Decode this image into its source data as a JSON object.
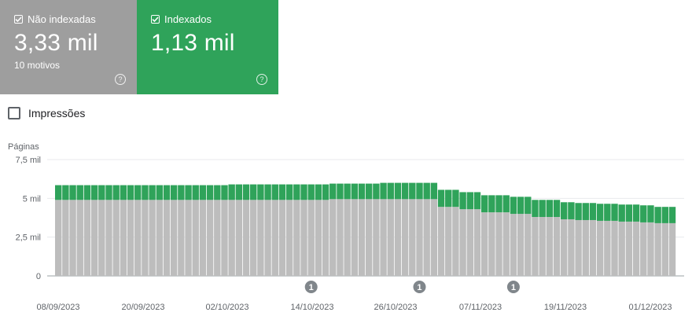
{
  "cards": {
    "not_indexed": {
      "label": "Não indexadas",
      "value": "3,33 mil",
      "sub": "10 motivos",
      "color": "#9e9e9e"
    },
    "indexed": {
      "label": "Indexados",
      "value": "1,13 mil",
      "color": "#2fa35a"
    }
  },
  "impressions": {
    "label": "Impressões"
  },
  "chart_data": {
    "type": "bar",
    "stacked": true,
    "y_title": "Páginas",
    "y_ticks": [
      "7,5 mil",
      "5 mil",
      "2,5 mil",
      "0"
    ],
    "ylim": [
      0,
      7500
    ],
    "x_ticks": [
      "08/09/2023",
      "20/09/2023",
      "02/10/2023",
      "14/10/2023",
      "26/10/2023",
      "07/11/2023",
      "19/11/2023",
      "01/12/2023"
    ],
    "grid": true,
    "series": [
      {
        "name": "Não indexadas",
        "color": "#bdbdbd",
        "values": [
          4900,
          4900,
          4900,
          4900,
          4900,
          4900,
          4900,
          4900,
          4900,
          4900,
          4900,
          4900,
          4900,
          4900,
          4900,
          4900,
          4900,
          4900,
          4900,
          4900,
          4900,
          4900,
          4900,
          4900,
          4900,
          4900,
          4900,
          4900,
          4900,
          4900,
          4900,
          4900,
          4900,
          4900,
          4900,
          4900,
          4900,
          4900,
          4950,
          4950,
          4950,
          4950,
          4950,
          4950,
          4950,
          4950,
          4950,
          4950,
          4950,
          4950,
          4950,
          4950,
          4950,
          4450,
          4450,
          4450,
          4300,
          4300,
          4300,
          4100,
          4100,
          4100,
          4100,
          4000,
          4000,
          4000,
          3800,
          3800,
          3800,
          3800,
          3650,
          3650,
          3600,
          3600,
          3600,
          3550,
          3550,
          3550,
          3500,
          3500,
          3500,
          3450,
          3450,
          3400,
          3400,
          3400
        ]
      },
      {
        "name": "Indexados",
        "color": "#2fa35a",
        "values": [
          950,
          950,
          950,
          950,
          950,
          950,
          950,
          950,
          950,
          950,
          950,
          950,
          950,
          950,
          950,
          950,
          950,
          950,
          950,
          950,
          950,
          950,
          950,
          950,
          1000,
          1000,
          1000,
          1000,
          1000,
          1000,
          1000,
          1000,
          1000,
          1000,
          1000,
          1000,
          1000,
          1000,
          1000,
          1000,
          1000,
          1000,
          1000,
          1000,
          1000,
          1050,
          1050,
          1050,
          1050,
          1050,
          1050,
          1050,
          1050,
          1100,
          1100,
          1100,
          1100,
          1100,
          1100,
          1100,
          1100,
          1100,
          1100,
          1100,
          1100,
          1100,
          1100,
          1100,
          1100,
          1100,
          1100,
          1100,
          1100,
          1100,
          1100,
          1100,
          1100,
          1100,
          1100,
          1100,
          1100,
          1100,
          1100,
          1050,
          1050,
          1050
        ]
      }
    ],
    "annotations": [
      {
        "label": "1",
        "bar_index": 35
      },
      {
        "label": "1",
        "bar_index": 50
      },
      {
        "label": "1",
        "bar_index": 63
      }
    ]
  }
}
